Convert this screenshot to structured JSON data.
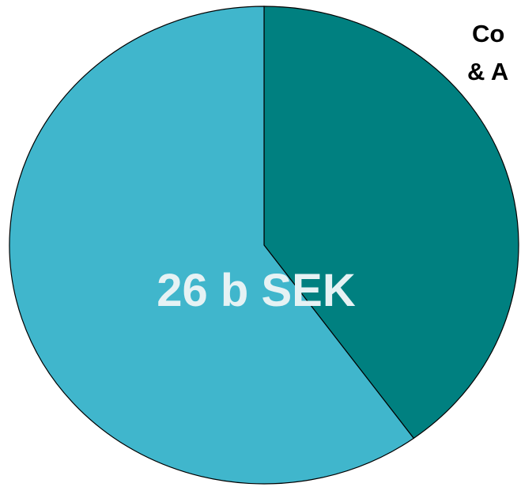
{
  "chart_data": {
    "type": "pie",
    "title_lines": [
      "Co",
      "& A"
    ],
    "center_label": "26 b SEK",
    "values": [
      40,
      60
    ],
    "colors": [
      "#008080",
      "#40b6cc"
    ]
  }
}
